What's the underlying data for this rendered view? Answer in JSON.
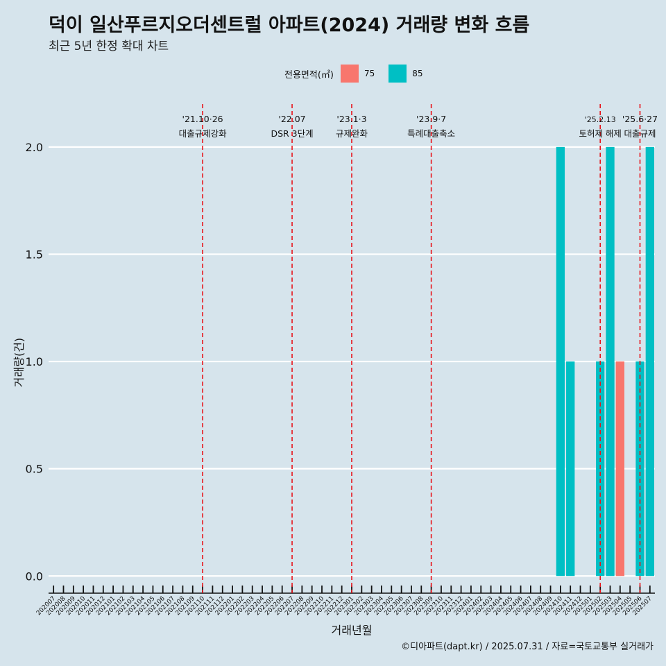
{
  "header": {
    "title": "덕이 일산푸르지오더센트럴 아파트(2024) 거래량 변화 흐름",
    "subtitle": "최근 5년 한정 확대 차트"
  },
  "footer": {
    "caption": "©디아파트(dapt.kr) / 2025.07.31 / 자료=국토교통부 실거래가"
  },
  "legend": {
    "title": "전용면적(㎡)",
    "items": [
      {
        "label": "75",
        "color": "#f8766d"
      },
      {
        "label": "85",
        "color": "#00bfc4"
      }
    ]
  },
  "chart_data": {
    "type": "bar",
    "xlabel": "거래년월",
    "ylabel": "거래량(건)",
    "ylim": [
      -0.08,
      2.2
    ],
    "yticks": [
      "0.0",
      "0.5",
      "1.0",
      "1.5",
      "2.0"
    ],
    "categories": [
      "202007",
      "202008",
      "202009",
      "202010",
      "202011",
      "202012",
      "202101",
      "202102",
      "202103",
      "202104",
      "202105",
      "202106",
      "202107",
      "202108",
      "202109",
      "202110",
      "202111",
      "202112",
      "202201",
      "202202",
      "202203",
      "202204",
      "202205",
      "202206",
      "202207",
      "202208",
      "202209",
      "202210",
      "202211",
      "202212",
      "202301",
      "202302",
      "202303",
      "202304",
      "202305",
      "202306",
      "202307",
      "202308",
      "202309",
      "202310",
      "202311",
      "202312",
      "202401",
      "202402",
      "202403",
      "202404",
      "202405",
      "202406",
      "202407",
      "202408",
      "202409",
      "202410",
      "202411",
      "202412",
      "202501",
      "202502",
      "202503",
      "202504",
      "202505",
      "202506",
      "202507"
    ],
    "bars": [
      {
        "month": "202410",
        "area": "85",
        "value": 2
      },
      {
        "month": "202411",
        "area": "85",
        "value": 1
      },
      {
        "month": "202502",
        "area": "85",
        "value": 1
      },
      {
        "month": "202503",
        "area": "85",
        "value": 2
      },
      {
        "month": "202504",
        "area": "75",
        "value": 1
      },
      {
        "month": "202506",
        "area": "85",
        "value": 1
      },
      {
        "month": "202507",
        "area": "85",
        "value": 2
      }
    ],
    "events": [
      {
        "month": "202110",
        "date": "'21.10·26",
        "label": "대출규제강화"
      },
      {
        "month": "202207",
        "date": "'22.07",
        "label": "DSR 3단계"
      },
      {
        "month": "202301",
        "date": "'23.1·3",
        "label": "규제완화"
      },
      {
        "month": "202309",
        "date": "'23.9·7",
        "label": "특례대출축소"
      },
      {
        "month": "202502",
        "date": "'25.2.13",
        "label": "토허제 해제"
      },
      {
        "month": "202506",
        "date": "'25.6·27",
        "label": "대출규제"
      }
    ],
    "grid": true,
    "legend_position": "top"
  }
}
